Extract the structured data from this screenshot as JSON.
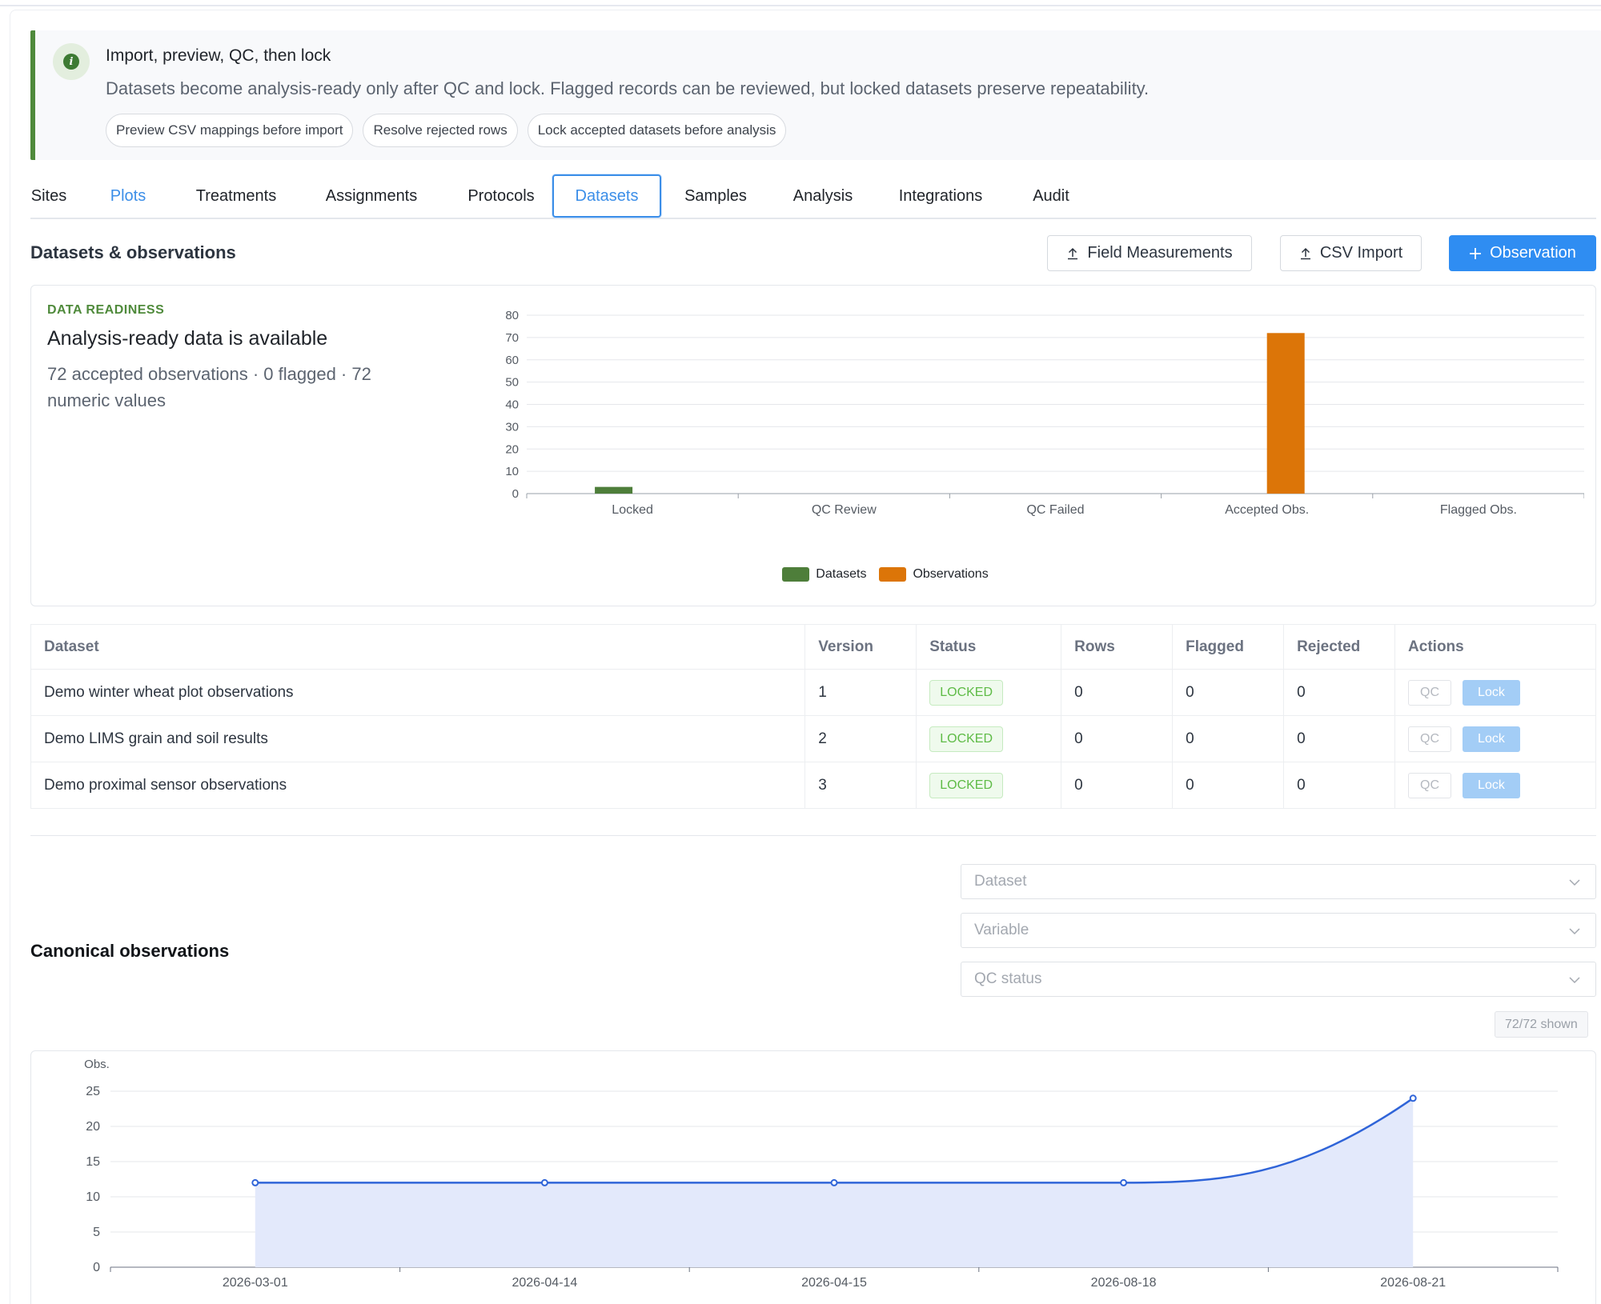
{
  "banner": {
    "icon": "info-icon",
    "title": "Import, preview, QC, then lock",
    "text": "Datasets become analysis-ready only after QC and lock. Flagged records can be reviewed, but locked datasets preserve repeatability.",
    "chips": [
      "Preview CSV mappings before import",
      "Resolve rejected rows",
      "Lock accepted datasets before analysis"
    ]
  },
  "tabs": [
    {
      "label": "Sites",
      "state": "normal"
    },
    {
      "label": "Plots",
      "state": "hover"
    },
    {
      "label": "Treatments",
      "state": "normal"
    },
    {
      "label": "Assignments",
      "state": "normal"
    },
    {
      "label": "Protocols",
      "state": "normal"
    },
    {
      "label": "Datasets",
      "state": "active"
    },
    {
      "label": "Samples",
      "state": "normal"
    },
    {
      "label": "Analysis",
      "state": "normal"
    },
    {
      "label": "Integrations",
      "state": "normal"
    },
    {
      "label": "Audit",
      "state": "normal"
    }
  ],
  "section": {
    "title": "Datasets & observations",
    "buttons": {
      "field_measurements": "Field Measurements",
      "csv_import": "CSV Import",
      "observation": "Observation"
    }
  },
  "readiness": {
    "eyebrow": "DATA READINESS",
    "title": "Analysis-ready data is available",
    "summary": "72 accepted observations · 0 flagged · 72 numeric values"
  },
  "chart_data": [
    {
      "type": "bar",
      "categories": [
        "Locked",
        "QC Review",
        "QC Failed",
        "Accepted Obs.",
        "Flagged Obs."
      ],
      "series": [
        {
          "name": "Datasets",
          "values": [
            3,
            0,
            0,
            0,
            0
          ],
          "color": "#4e7e3a"
        },
        {
          "name": "Observations",
          "values": [
            0,
            0,
            0,
            72,
            0
          ],
          "color": "#dc7508"
        }
      ],
      "ylim": [
        0,
        80
      ],
      "yticks": [
        0,
        10,
        20,
        30,
        40,
        50,
        60,
        70,
        80
      ],
      "grid": true,
      "legend": "bottom"
    },
    {
      "type": "area",
      "x": [
        "2026-03-01",
        "2026-04-14",
        "2026-04-15",
        "2026-08-18",
        "2026-08-21"
      ],
      "series": [
        {
          "values": [
            12,
            12,
            12,
            12,
            24
          ],
          "color": "#2f64d8",
          "fill": "#e3e9fb"
        }
      ],
      "ylabel": "Obs.",
      "ylim": [
        0,
        25
      ],
      "yticks": [
        0,
        5,
        10,
        15,
        20,
        25
      ],
      "grid": true
    }
  ],
  "table": {
    "columns": [
      "Dataset",
      "Version",
      "Status",
      "Rows",
      "Flagged",
      "Rejected",
      "Actions"
    ],
    "rows": [
      {
        "dataset": "Demo winter wheat plot observations",
        "version": "1",
        "status": "LOCKED",
        "rows": "0",
        "flagged": "0",
        "rejected": "0"
      },
      {
        "dataset": "Demo LIMS grain and soil results",
        "version": "2",
        "status": "LOCKED",
        "rows": "0",
        "flagged": "0",
        "rejected": "0"
      },
      {
        "dataset": "Demo proximal sensor observations",
        "version": "3",
        "status": "LOCKED",
        "rows": "0",
        "flagged": "0",
        "rejected": "0"
      }
    ],
    "action_labels": {
      "qc": "QC",
      "lock": "Lock"
    }
  },
  "canonical": {
    "title": "Canonical observations",
    "filters": {
      "dataset": "Dataset",
      "variable": "Variable",
      "qc_status": "QC status"
    },
    "shown": "72/72 shown"
  }
}
